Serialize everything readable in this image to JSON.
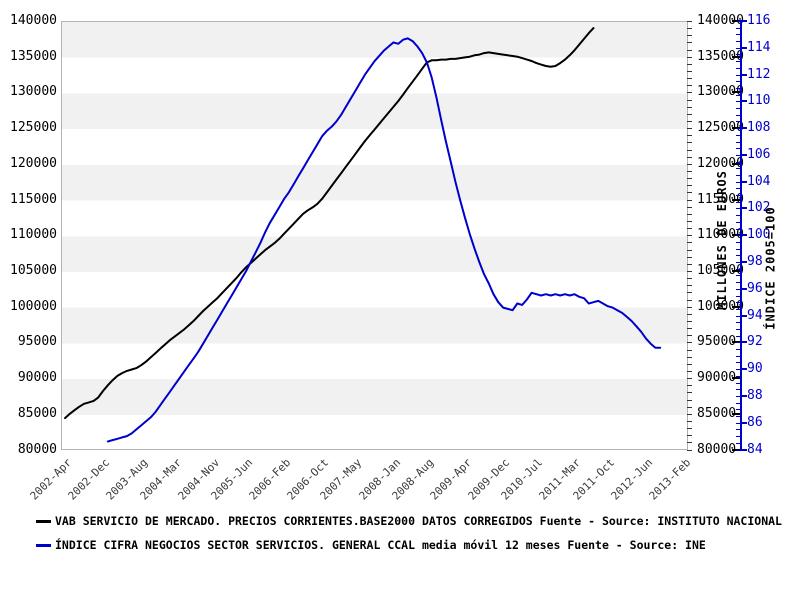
{
  "legend": {
    "series1_label": "VAB SERVICIO DE MERCADO. PRECIOS CORRIENTES.BASE2000 DATOS CORREGIDOS  Fuente - Source: INSTITUTO NACIONAL",
    "series2_label": "ÍNDICE CIFRA NEGOCIOS SECTOR SERVICIOS. GENERAL CCAL media móvil 12 meses  Fuente - Source: INE"
  },
  "colors": {
    "series1": "#000000",
    "series2": "#0000cc",
    "band_gray": "#f1f1f1",
    "plot_border": "#b3b3b3"
  },
  "axes": {
    "euros": {
      "title": "MILLONES DE EUROS",
      "min": 80000,
      "max": 140000,
      "step": 5000,
      "ticks": [
        140000,
        135000,
        130000,
        125000,
        120000,
        115000,
        110000,
        105000,
        100000,
        95000,
        90000,
        85000,
        80000
      ],
      "minor_step": 1000
    },
    "index": {
      "title": "ÍNDICE 2005=100",
      "min": 84,
      "max": 116,
      "step": 2,
      "ticks": [
        116,
        114,
        112,
        110,
        108,
        106,
        104,
        102,
        100,
        98,
        96,
        94,
        92,
        90,
        88,
        86,
        84
      ],
      "minor_step": 0.5
    }
  },
  "x_axis": {
    "categories": [
      {
        "label": "2002-Apr",
        "month_offset": 0
      },
      {
        "label": "2002-Dec",
        "month_offset": 8
      },
      {
        "label": "2003-Aug",
        "month_offset": 16
      },
      {
        "label": "2004-Mar",
        "month_offset": 23
      },
      {
        "label": "2004-Nov",
        "month_offset": 31
      },
      {
        "label": "2005-Jun",
        "month_offset": 38
      },
      {
        "label": "2006-Feb",
        "month_offset": 46
      },
      {
        "label": "2006-Oct",
        "month_offset": 54
      },
      {
        "label": "2007-May",
        "month_offset": 61
      },
      {
        "label": "2008-Jan",
        "month_offset": 69
      },
      {
        "label": "2008-Aug",
        "month_offset": 76
      },
      {
        "label": "2009-Apr",
        "month_offset": 84
      },
      {
        "label": "2009-Dec",
        "month_offset": 92
      },
      {
        "label": "2010-Jul",
        "month_offset": 99
      },
      {
        "label": "2011-Mar",
        "month_offset": 107
      },
      {
        "label": "2011-Oct",
        "month_offset": 114
      },
      {
        "label": "2012-Jun",
        "month_offset": 122
      },
      {
        "label": "2013-Feb",
        "month_offset": 130
      }
    ]
  },
  "chart_data": {
    "type": "line",
    "x_range": [
      "2002-Apr",
      "2013-Feb"
    ],
    "grid": "horizontal-bands",
    "legend_position": "bottom-left",
    "series": [
      {
        "name": "VAB SERVICIO DE MERCADO. PRECIOS CORRIENTES.BASE2000 DATOS CORREGIDOS  Fuente - Source: INSTITUTO NACIONAL",
        "color": "#000000",
        "axis": "euros",
        "unit": "millones de euros",
        "frequency": "monthly",
        "start": "2002-Apr",
        "start_month_offset": 0,
        "values": [
          84400,
          85000,
          85500,
          86000,
          86400,
          86600,
          86800,
          87300,
          88200,
          89000,
          89700,
          90300,
          90700,
          91000,
          91200,
          91400,
          91800,
          92300,
          92900,
          93500,
          94100,
          94700,
          95300,
          95800,
          96300,
          96800,
          97400,
          98000,
          98700,
          99400,
          100000,
          100600,
          101200,
          101900,
          102600,
          103300,
          104000,
          104800,
          105500,
          106100,
          106700,
          107300,
          107900,
          108400,
          108900,
          109500,
          110200,
          110900,
          111600,
          112300,
          113000,
          113500,
          113900,
          114400,
          115100,
          116000,
          116900,
          117800,
          118700,
          119600,
          120500,
          121400,
          122300,
          123200,
          124000,
          124800,
          125600,
          126400,
          127200,
          128000,
          128800,
          129700,
          130600,
          131500,
          132400,
          133300,
          134200,
          134500,
          134500,
          134600,
          134600,
          134700,
          134700,
          134800,
          134900,
          135000,
          135200,
          135300,
          135500,
          135600,
          135500,
          135400,
          135300,
          135200,
          135100,
          135000,
          134800,
          134600,
          134400,
          134100,
          133900,
          133700,
          133600,
          133700,
          134100,
          134600,
          135200,
          135900,
          136700,
          137500,
          138300,
          139000
        ]
      },
      {
        "name": "ÍNDICE CIFRA NEGOCIOS SECTOR SERVICIOS. GENERAL CCAL media móvil 12 meses  Fuente - Source: INE",
        "color": "#0000cc",
        "axis": "index",
        "unit": "índice 2005=100",
        "frequency": "monthly",
        "start": "2003-Jan",
        "start_month_offset": 9,
        "values": [
          84.6,
          84.7,
          84.8,
          84.9,
          85.0,
          85.2,
          85.5,
          85.8,
          86.1,
          86.4,
          86.8,
          87.3,
          87.8,
          88.3,
          88.8,
          89.3,
          89.8,
          90.3,
          90.8,
          91.3,
          91.9,
          92.5,
          93.1,
          93.7,
          94.3,
          94.9,
          95.5,
          96.1,
          96.7,
          97.3,
          98.0,
          98.7,
          99.4,
          100.2,
          100.9,
          101.5,
          102.1,
          102.7,
          103.2,
          103.8,
          104.4,
          105.0,
          105.6,
          106.2,
          106.8,
          107.4,
          107.8,
          108.1,
          108.5,
          109.0,
          109.6,
          110.2,
          110.8,
          111.4,
          112.0,
          112.5,
          113.0,
          113.4,
          113.8,
          114.1,
          114.4,
          114.3,
          114.6,
          114.7,
          114.5,
          114.1,
          113.6,
          112.9,
          111.8,
          110.3,
          108.6,
          107.0,
          105.5,
          104.0,
          102.6,
          101.3,
          100.1,
          99.0,
          98.0,
          97.1,
          96.4,
          95.6,
          95.0,
          94.6,
          94.5,
          94.4,
          94.9,
          94.8,
          95.2,
          95.7,
          95.6,
          95.5,
          95.6,
          95.5,
          95.6,
          95.5,
          95.6,
          95.5,
          95.6,
          95.4,
          95.3,
          94.9,
          95.0,
          95.1,
          94.9,
          94.7,
          94.6,
          94.4,
          94.2,
          93.9,
          93.6,
          93.2,
          92.8,
          92.3,
          91.9,
          91.6,
          91.6
        ]
      }
    ]
  }
}
